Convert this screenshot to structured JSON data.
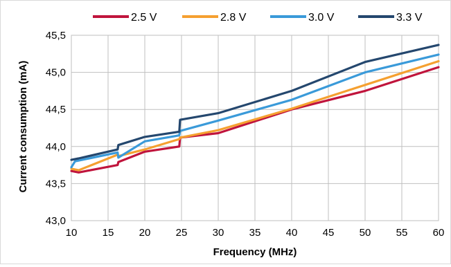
{
  "chart_data": {
    "type": "line",
    "title": "",
    "xlabel": "Frequency (MHz)",
    "ylabel": "Current consumption (mA)",
    "xlim": [
      10,
      60
    ],
    "ylim": [
      43.0,
      45.5
    ],
    "x_ticks": [
      10,
      15,
      20,
      25,
      30,
      35,
      40,
      45,
      50,
      55,
      60
    ],
    "x_tick_labels": [
      "10",
      "15",
      "20",
      "25",
      "30",
      "35",
      "40",
      "45",
      "50",
      "55",
      "60"
    ],
    "y_ticks": [
      43.0,
      43.5,
      44.0,
      44.5,
      45.0,
      45.5
    ],
    "y_tick_labels": [
      "43,0",
      "43,5",
      "44,0",
      "44,5",
      "45,0",
      "45,5"
    ],
    "grid": true,
    "legend_position": "top",
    "series": [
      {
        "name": "2.5 V",
        "color": "#c0143c",
        "x": [
          10,
          11,
          16.3,
          16.4,
          20,
          24.7,
          24.8,
          30,
          40,
          50,
          60
        ],
        "y": [
          43.67,
          43.65,
          43.75,
          43.79,
          43.93,
          44.0,
          44.12,
          44.18,
          44.5,
          44.75,
          45.07
        ]
      },
      {
        "name": "2.8 V",
        "color": "#f5a030",
        "x": [
          10,
          11,
          16.3,
          16.4,
          20,
          24.7,
          24.8,
          30,
          40,
          50,
          60
        ],
        "y": [
          43.7,
          43.68,
          43.89,
          43.87,
          43.96,
          44.1,
          44.12,
          44.22,
          44.51,
          44.83,
          45.15
        ]
      },
      {
        "name": "3.0 V",
        "color": "#3a9ad9",
        "x": [
          10,
          10.5,
          16.3,
          16.4,
          20,
          24.7,
          24.8,
          30,
          40,
          50,
          60
        ],
        "y": [
          43.72,
          43.8,
          43.92,
          43.85,
          44.07,
          44.15,
          44.21,
          44.35,
          44.63,
          45.0,
          45.24
        ]
      },
      {
        "name": "3.3 V",
        "color": "#24476e",
        "x": [
          10,
          11,
          16.3,
          16.4,
          20,
          24.7,
          24.8,
          30,
          40,
          50,
          60
        ],
        "y": [
          43.82,
          43.84,
          43.96,
          44.02,
          44.13,
          44.2,
          44.36,
          44.45,
          44.75,
          45.14,
          45.37
        ]
      }
    ]
  }
}
